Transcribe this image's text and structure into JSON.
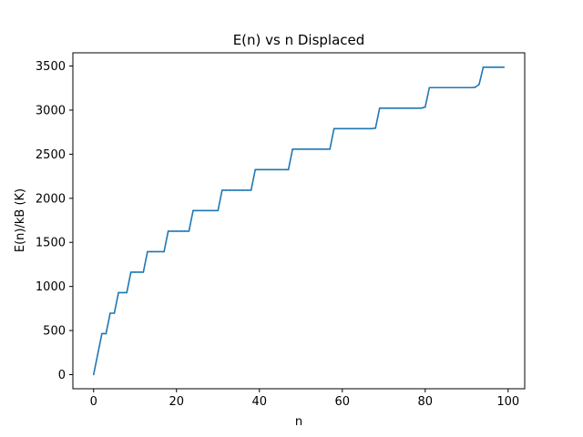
{
  "chart_data": {
    "type": "line",
    "title": "E(n) vs n Displaced",
    "xlabel": "n",
    "ylabel": "E(n)/kB (K)",
    "xlim": [
      -5,
      104
    ],
    "ylim": [
      -160,
      3650
    ],
    "xticks": [
      0,
      20,
      40,
      60,
      80,
      100
    ],
    "yticks": [
      0,
      500,
      1000,
      1500,
      2000,
      2500,
      3000,
      3500
    ],
    "grid": false,
    "line_color": "#1f77b4",
    "series": [
      {
        "name": "E(n)",
        "x": [
          0,
          1,
          2,
          3,
          4,
          5,
          6,
          7,
          8,
          9,
          10,
          11,
          12,
          13,
          14,
          15,
          16,
          17,
          18,
          19,
          20,
          21,
          22,
          23,
          24,
          25,
          26,
          27,
          28,
          29,
          30,
          31,
          32,
          33,
          34,
          35,
          36,
          37,
          38,
          39,
          40,
          41,
          42,
          43,
          44,
          45,
          46,
          47,
          48,
          49,
          50,
          51,
          52,
          53,
          54,
          55,
          56,
          57,
          58,
          59,
          60,
          61,
          62,
          63,
          64,
          65,
          66,
          67,
          68,
          69,
          70,
          71,
          72,
          73,
          74,
          75,
          76,
          77,
          78,
          79,
          80,
          81,
          82,
          83,
          84,
          85,
          86,
          87,
          88,
          89,
          90,
          91,
          92,
          93,
          94,
          95,
          96,
          97,
          98,
          99
        ],
        "values": [
          0,
          232,
          465,
          465,
          697,
          697,
          930,
          930,
          930,
          1162,
          1162,
          1162,
          1162,
          1395,
          1395,
          1395,
          1395,
          1395,
          1627,
          1627,
          1627,
          1627,
          1627,
          1627,
          1860,
          1860,
          1860,
          1860,
          1860,
          1860,
          1860,
          2092,
          2092,
          2092,
          2092,
          2092,
          2092,
          2092,
          2092,
          2325,
          2325,
          2325,
          2325,
          2325,
          2325,
          2325,
          2325,
          2325,
          2557,
          2557,
          2557,
          2557,
          2557,
          2557,
          2557,
          2557,
          2557,
          2557,
          2790,
          2790,
          2790,
          2790,
          2790,
          2790,
          2790,
          2790,
          2790,
          2790,
          2795,
          3022,
          3022,
          3022,
          3022,
          3022,
          3022,
          3022,
          3022,
          3022,
          3022,
          3022,
          3035,
          3255,
          3255,
          3255,
          3255,
          3255,
          3255,
          3255,
          3255,
          3255,
          3255,
          3255,
          3258,
          3290,
          3487,
          3487,
          3487,
          3487,
          3487,
          3487
        ]
      }
    ]
  }
}
